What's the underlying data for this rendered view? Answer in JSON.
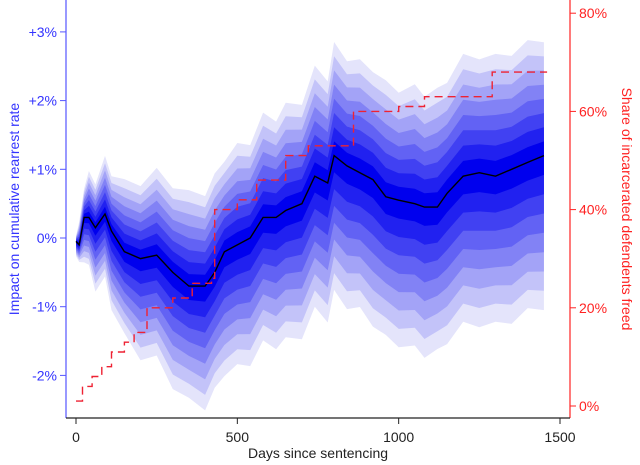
{
  "chart_data": {
    "type": "area",
    "title": "",
    "xlabel": "Days since sentencing",
    "ylabel_left": "Impact on cumulative rearrest rate",
    "ylabel_right": "Share of incarcerated defendents freed",
    "xlim": [
      0,
      1500
    ],
    "ylim_left": [
      -2.5,
      3.4
    ],
    "ylim_right": [
      0,
      80
    ],
    "x_ticks": [
      0,
      500,
      1000,
      1500
    ],
    "x_tick_labels": [
      "0",
      "500",
      "1000",
      "1500"
    ],
    "y_left_ticks": [
      -2,
      -1,
      0,
      1,
      2,
      3
    ],
    "y_left_tick_labels": [
      "-2%",
      "-1%",
      "0%",
      "+1%",
      "+2%",
      "+3%"
    ],
    "y_right_ticks": [
      0,
      20,
      40,
      60,
      80
    ],
    "y_right_tick_labels": [
      "0%",
      "20%",
      "40%",
      "60%",
      "80%"
    ],
    "grid": false,
    "legend": null,
    "colors": {
      "left_axis": "#3333ff",
      "right_axis": "#ff2222",
      "median_line": "#000000",
      "band_dark": "#0000ee",
      "band_light": "#e4e4fb",
      "share_line": "#ee2233"
    },
    "series": [
      {
        "name": "Impact on cumulative rearrest rate (median estimate)",
        "axis": "left",
        "style": "solid black line with fan-chart uncertainty bands",
        "x": [
          0,
          10,
          25,
          40,
          60,
          90,
          110,
          150,
          200,
          250,
          300,
          350,
          400,
          430,
          460,
          500,
          540,
          580,
          620,
          650,
          700,
          740,
          780,
          800,
          840,
          880,
          920,
          960,
          1000,
          1050,
          1080,
          1120,
          1150,
          1200,
          1250,
          1300,
          1350,
          1400,
          1450
        ],
        "values": [
          -0.05,
          -0.1,
          0.3,
          0.3,
          0.15,
          0.35,
          0.1,
          -0.2,
          -0.3,
          -0.25,
          -0.5,
          -0.7,
          -0.7,
          -0.5,
          -0.2,
          -0.1,
          0.0,
          0.3,
          0.3,
          0.4,
          0.5,
          0.9,
          0.8,
          1.2,
          1.05,
          0.95,
          0.85,
          0.6,
          0.55,
          0.5,
          0.45,
          0.45,
          0.65,
          0.9,
          0.95,
          0.9,
          1.0,
          1.1,
          1.2
        ],
        "outer_band_halfwidth": [
          0.15,
          0.3,
          0.55,
          0.7,
          0.8,
          0.9,
          1.0,
          1.15,
          1.3,
          1.4,
          1.5,
          1.55,
          1.6,
          1.6,
          1.6,
          1.65,
          1.65,
          1.7,
          1.7,
          1.75,
          1.75,
          1.8,
          1.8,
          1.85,
          1.85,
          1.85,
          1.9,
          1.9,
          1.9,
          1.95,
          1.95,
          1.95,
          1.95,
          2.0,
          2.0,
          2.0,
          2.0,
          2.0,
          2.0
        ]
      },
      {
        "name": "Share of incarcerated defendents freed",
        "axis": "right",
        "style": "dashed red step line",
        "x": [
          0,
          20,
          50,
          80,
          110,
          150,
          180,
          220,
          300,
          360,
          420,
          430,
          500,
          560,
          650,
          720,
          860,
          1000,
          1080,
          1290,
          1460
        ],
        "values": [
          1,
          4,
          6,
          8,
          11,
          13,
          15,
          20,
          22,
          25,
          26,
          40,
          42,
          46,
          51,
          53,
          60,
          61,
          63,
          68,
          68
        ]
      }
    ]
  }
}
